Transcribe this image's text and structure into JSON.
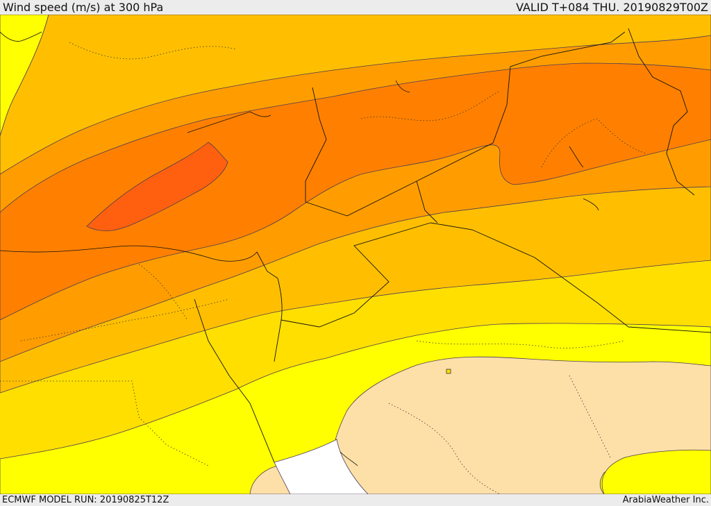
{
  "header": {
    "title": "Wind speed (m/s) at 300 hPa",
    "valid_time": "VALID T+084 THU. 20190829T00Z"
  },
  "footer": {
    "model_run": "ECMWF MODEL RUN: 20190825T12Z",
    "credit": "ArabiaWeather Inc."
  },
  "map": {
    "variable": "wind speed",
    "level": "300 hPa",
    "fill_colors": {
      "below_lowest": "#ffffff",
      "band_1": "#fde0a8",
      "band_2": "#ffff00",
      "band_3": "#ffdf00",
      "band_4": "#ffbf00",
      "band_5": "#ff9d00",
      "band_6": "#ff8000",
      "band_7": "#ff6010"
    },
    "contour_line_color": "#4a3a55",
    "border_style": "solid black (country), dotted (province)"
  }
}
